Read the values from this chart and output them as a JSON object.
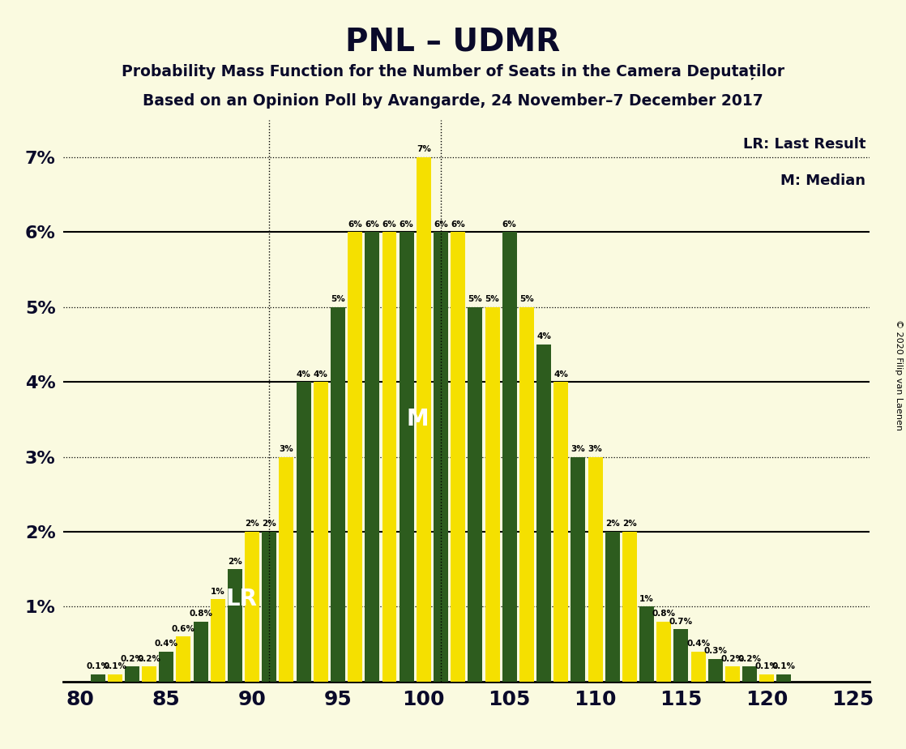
{
  "title": "PNL – UDMR",
  "subtitle1": "Probability Mass Function for the Number of Seats in the Camera Deputaților",
  "subtitle2": "Based on an Opinion Poll by Avangarde, 24 November–7 December 2017",
  "copyright": "© 2020 Filip van Laenen",
  "background_color": "#FAFAE0",
  "bar_color_yellow": "#F5E000",
  "bar_color_green": "#2D5C1E",
  "text_color": "#0A0A2A",
  "lr_label": "LR: Last Result",
  "m_label": "M: Median",
  "lr_seat": 91,
  "median_seat": 101,
  "seats": [
    80,
    81,
    82,
    83,
    84,
    85,
    86,
    87,
    88,
    89,
    90,
    91,
    92,
    93,
    94,
    95,
    96,
    97,
    98,
    99,
    100,
    101,
    102,
    103,
    104,
    105,
    106,
    107,
    108,
    109,
    110,
    111,
    112,
    113,
    114,
    115,
    116,
    117,
    118,
    119,
    120,
    121,
    122,
    123,
    124,
    125
  ],
  "values": [
    0.0,
    0.1,
    0.1,
    0.2,
    0.2,
    0.4,
    0.6,
    0.8,
    1.1,
    1.5,
    2.0,
    2.0,
    3.0,
    4.0,
    4.0,
    5.0,
    6.0,
    6.0,
    6.0,
    6.0,
    7.0,
    6.0,
    6.0,
    5.0,
    5.0,
    6.0,
    5.0,
    4.5,
    4.0,
    3.0,
    3.0,
    2.0,
    2.0,
    1.0,
    0.8,
    0.7,
    0.4,
    0.3,
    0.2,
    0.2,
    0.1,
    0.1,
    0.0,
    0.0,
    0.0,
    0.0
  ],
  "colors": [
    "#F5E000",
    "#2D5C1E",
    "#F5E000",
    "#2D5C1E",
    "#F5E000",
    "#2D5C1E",
    "#F5E000",
    "#2D5C1E",
    "#F5E000",
    "#2D5C1E",
    "#F5E000",
    "#2D5C1E",
    "#F5E000",
    "#2D5C1E",
    "#F5E000",
    "#2D5C1E",
    "#F5E000",
    "#2D5C1E",
    "#F5E000",
    "#2D5C1E",
    "#F5E000",
    "#2D5C1E",
    "#F5E000",
    "#2D5C1E",
    "#F5E000",
    "#2D5C1E",
    "#F5E000",
    "#2D5C1E",
    "#F5E000",
    "#2D5C1E",
    "#F5E000",
    "#2D5C1E",
    "#F5E000",
    "#2D5C1E",
    "#F5E000",
    "#2D5C1E",
    "#F5E000",
    "#2D5C1E",
    "#F5E000",
    "#2D5C1E",
    "#F5E000",
    "#2D5C1E",
    "#F5E000",
    "#2D5C1E",
    "#F5E000",
    "#2D5C1E"
  ],
  "ylim": [
    0,
    7.5
  ],
  "ytick_vals": [
    0,
    1,
    2,
    3,
    4,
    5,
    6,
    7
  ],
  "ytick_labels": [
    "",
    "1%",
    "2%",
    "3%",
    "4%",
    "5%",
    "6%",
    "7%"
  ],
  "solid_yticks": [
    2,
    4,
    6
  ],
  "dotted_yticks": [
    1,
    3,
    5,
    7
  ],
  "xlim": [
    79.0,
    126.0
  ],
  "xticks": [
    80,
    85,
    90,
    95,
    100,
    105,
    110,
    115,
    120,
    125
  ]
}
